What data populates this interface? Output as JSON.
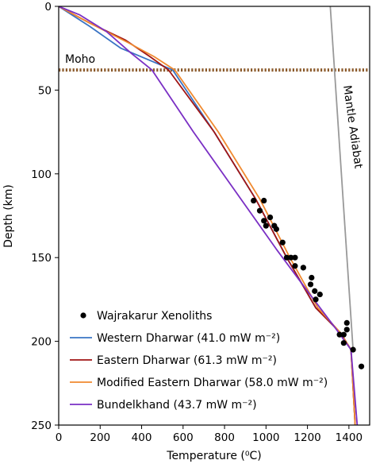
{
  "chart_data": {
    "type": "line",
    "xlabel": "Temperature (⁰C)",
    "ylabel": "Depth (km)",
    "xlim": [
      0,
      1500
    ],
    "ylim": [
      0,
      250
    ],
    "y_inverted": true,
    "x_ticks": [
      0,
      200,
      400,
      600,
      800,
      1000,
      1200,
      1400
    ],
    "y_ticks": [
      0,
      50,
      100,
      150,
      200,
      250
    ],
    "grid": false,
    "legend_position": "bottom-left",
    "moho": {
      "label": "Moho",
      "depth": 38,
      "color": "#8b5a2b"
    },
    "adiabat": {
      "label": "Mantle Adiabat",
      "color": "#999999",
      "points": [
        [
          1310,
          0
        ],
        [
          1420,
          205
        ]
      ]
    },
    "series": [
      {
        "name": "Western Dharwar (41.0 mW m⁻²)",
        "color": "#3a74c4",
        "points": [
          [
            0,
            0
          ],
          [
            150,
            12
          ],
          [
            300,
            25
          ],
          [
            550,
            38
          ],
          [
            750,
            75
          ],
          [
            950,
            115
          ],
          [
            1100,
            150
          ],
          [
            1240,
            180
          ],
          [
            1360,
            195
          ],
          [
            1410,
            205
          ],
          [
            1430,
            250
          ]
        ]
      },
      {
        "name": "Eastern Dharwar (61.3 mW m⁻²)",
        "color": "#a01515",
        "points": [
          [
            0,
            0
          ],
          [
            150,
            10
          ],
          [
            320,
            20
          ],
          [
            440,
            30
          ],
          [
            530,
            38
          ],
          [
            750,
            75
          ],
          [
            950,
            115
          ],
          [
            1100,
            150
          ],
          [
            1240,
            180
          ],
          [
            1360,
            195
          ],
          [
            1410,
            205
          ],
          [
            1430,
            250
          ]
        ]
      },
      {
        "name": "Modified Eastern Dharwar (58.0 mW m⁻²)",
        "color": "#f08a30",
        "points": [
          [
            0,
            0
          ],
          [
            150,
            10
          ],
          [
            340,
            22
          ],
          [
            460,
            30
          ],
          [
            560,
            38
          ],
          [
            770,
            75
          ],
          [
            970,
            115
          ],
          [
            1115,
            150
          ],
          [
            1250,
            180
          ],
          [
            1360,
            195
          ],
          [
            1410,
            205
          ],
          [
            1430,
            250
          ]
        ]
      },
      {
        "name": "Bundelkhand (43.7 mW m⁻²)",
        "color": "#7a2fc4",
        "points": [
          [
            0,
            0
          ],
          [
            100,
            5
          ],
          [
            230,
            15
          ],
          [
            350,
            28
          ],
          [
            450,
            38
          ],
          [
            650,
            75
          ],
          [
            850,
            110
          ],
          [
            1050,
            145
          ],
          [
            1200,
            170
          ],
          [
            1340,
            193
          ],
          [
            1410,
            205
          ],
          [
            1440,
            250
          ]
        ]
      }
    ],
    "scatter": {
      "name": "Wajrakarur Xenoliths",
      "color": "#000000",
      "points": [
        [
          940,
          116
        ],
        [
          990,
          116
        ],
        [
          970,
          122
        ],
        [
          990,
          128
        ],
        [
          1000,
          131
        ],
        [
          1020,
          126
        ],
        [
          1040,
          131
        ],
        [
          1050,
          133
        ],
        [
          1080,
          141
        ],
        [
          1100,
          150
        ],
        [
          1120,
          150
        ],
        [
          1140,
          150
        ],
        [
          1140,
          155
        ],
        [
          1180,
          156
        ],
        [
          1220,
          162
        ],
        [
          1215,
          166
        ],
        [
          1235,
          170
        ],
        [
          1240,
          175
        ],
        [
          1260,
          172
        ],
        [
          1355,
          196
        ],
        [
          1375,
          196
        ],
        [
          1390,
          189
        ],
        [
          1390,
          193
        ],
        [
          1375,
          201
        ],
        [
          1420,
          205
        ],
        [
          1460,
          215
        ]
      ]
    }
  }
}
